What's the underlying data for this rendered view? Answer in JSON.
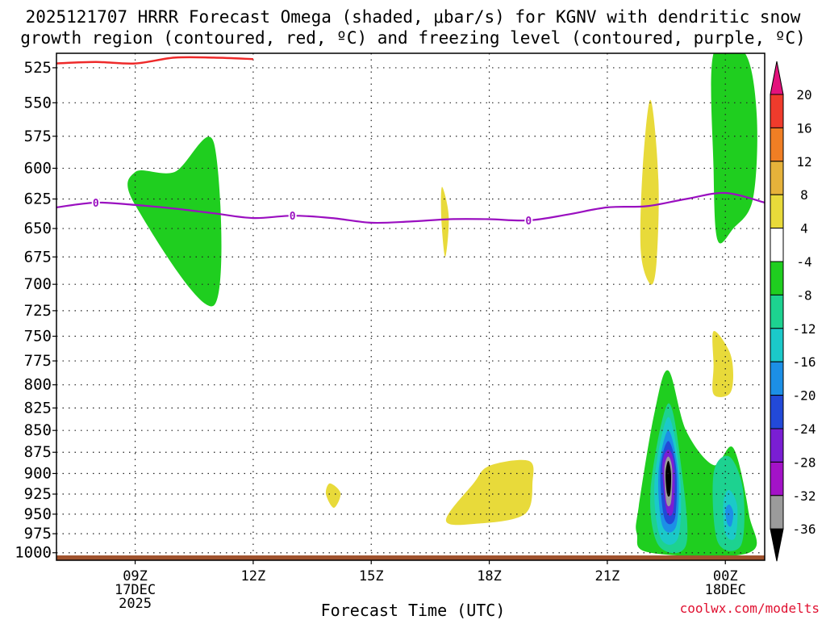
{
  "title_line1": "2025121707 HRRR Forecast Omega (shaded, μbar/s) for KGNV with dendritic snow",
  "title_line2": "growth region (contoured, red, ºC) and freezing level (contoured, purple, ºC)",
  "xlabel": "Forecast Time (UTC)",
  "credit": "coolwx.com/modelts",
  "chart_data": {
    "type": "heatmap",
    "title": "2025121707 HRRR Forecast Omega (shaded, μbar/s) for KGNV with dendritic snow growth region (contoured, red, ºC) and freezing level (contoured, purple, ºC)",
    "xlabel": "Forecast Time (UTC)",
    "ylabel": "",
    "x_range_hours": [
      7,
      25
    ],
    "y_range_mb": [
      515,
      1010
    ],
    "y_scale": "log-pressure (inverted)",
    "y_ticks": [
      525,
      550,
      575,
      600,
      625,
      650,
      675,
      700,
      725,
      750,
      775,
      800,
      825,
      850,
      875,
      900,
      925,
      950,
      975,
      1000
    ],
    "x_ticks": [
      {
        "h": 9,
        "label": "09Z",
        "sub1": "17DEC",
        "sub2": "2025"
      },
      {
        "h": 12,
        "label": "12Z",
        "sub1": "",
        "sub2": ""
      },
      {
        "h": 15,
        "label": "15Z",
        "sub1": "",
        "sub2": ""
      },
      {
        "h": 18,
        "label": "18Z",
        "sub1": "",
        "sub2": ""
      },
      {
        "h": 21,
        "label": "21Z",
        "sub1": "",
        "sub2": ""
      },
      {
        "h": 24,
        "label": "00Z",
        "sub1": "18DEC",
        "sub2": ""
      }
    ],
    "grid": true,
    "colorbar": {
      "labels": [
        "20",
        "16",
        "12",
        "8",
        "4",
        "-4",
        "-8",
        "-12",
        "-16",
        "-20",
        "-24",
        "-28",
        "-32",
        "-36"
      ],
      "colors": [
        "#e3127c",
        "#ef3b2c",
        "#f07e24",
        "#e6b23a",
        "#e8da3a",
        "#ffffff",
        "#1fce1f",
        "#1dd290",
        "#1bc9c9",
        "#1c8fe6",
        "#2249d8",
        "#7a1ed3",
        "#a312c7",
        "#9b9b9b",
        "#000000"
      ]
    },
    "omega_features": [
      {
        "name": "green-lobe-upper-left",
        "value": -6,
        "color": "#1fce1f",
        "points": [
          [
            9,
            603
          ],
          [
            10,
            603
          ],
          [
            11,
            580
          ],
          [
            11,
            720
          ],
          [
            9,
            630
          ]
        ]
      },
      {
        "name": "green-plume-upper-right",
        "value": -6,
        "color": "#1fce1f",
        "points": [
          [
            23.7,
            515
          ],
          [
            24.5,
            515
          ],
          [
            24.8,
            560
          ],
          [
            24.7,
            625
          ],
          [
            24.2,
            650
          ],
          [
            23.8,
            660
          ],
          [
            23.7,
            600
          ]
        ]
      },
      {
        "name": "yellow-streak-1650",
        "value": 5,
        "color": "#e8da3a",
        "points": [
          [
            16.8,
            615
          ],
          [
            16.97,
            640
          ],
          [
            16.88,
            675
          ],
          [
            16.78,
            640
          ]
        ]
      },
      {
        "name": "yellow-plume-2230",
        "value": 5,
        "color": "#e8da3a",
        "points": [
          [
            22.1,
            548
          ],
          [
            22.3,
            610
          ],
          [
            22.25,
            680
          ],
          [
            22.1,
            700
          ],
          [
            21.85,
            670
          ],
          [
            21.9,
            600
          ]
        ]
      },
      {
        "name": "yellow-blob-2400",
        "value": 5,
        "color": "#e8da3a",
        "points": [
          [
            23.7,
            745
          ],
          [
            24.1,
            765
          ],
          [
            24.2,
            790
          ],
          [
            24.1,
            810
          ],
          [
            23.7,
            810
          ],
          [
            23.7,
            780
          ]
        ]
      },
      {
        "name": "yellow-dot-1400",
        "value": 5,
        "color": "#e8da3a",
        "points": [
          [
            13.95,
            912
          ],
          [
            14.22,
            924
          ],
          [
            14.05,
            942
          ],
          [
            13.85,
            925
          ]
        ]
      },
      {
        "name": "yellow-blob-1800",
        "value": 5,
        "color": "#e8da3a",
        "points": [
          [
            16.9,
            958
          ],
          [
            17.6,
            912
          ],
          [
            18.0,
            891
          ],
          [
            19.0,
            885
          ],
          [
            19.1,
            910
          ],
          [
            18.9,
            950
          ],
          [
            17.7,
            962
          ]
        ]
      },
      {
        "name": "omega-core-green",
        "value": -6,
        "color": "#1fce1f",
        "points": [
          [
            21.8,
            940
          ],
          [
            22.2,
            830
          ],
          [
            22.55,
            785
          ],
          [
            23.0,
            850
          ],
          [
            23.7,
            890
          ],
          [
            24.2,
            870
          ],
          [
            24.6,
            950
          ],
          [
            24.6,
            1000
          ],
          [
            22.1,
            1000
          ],
          [
            21.75,
            975
          ]
        ]
      },
      {
        "name": "omega-core-teal",
        "value": -10,
        "color": "#1dd290",
        "points": [
          [
            22.1,
            920
          ],
          [
            22.55,
            820
          ],
          [
            22.9,
            900
          ],
          [
            23.0,
            990
          ],
          [
            22.3,
            990
          ]
        ]
      },
      {
        "name": "omega-core-cyan",
        "value": -14,
        "color": "#1bc9c9",
        "points": [
          [
            22.2,
            910
          ],
          [
            22.55,
            835
          ],
          [
            22.85,
            905
          ],
          [
            22.8,
            980
          ],
          [
            22.35,
            980
          ]
        ]
      },
      {
        "name": "omega-core-blue",
        "value": -18,
        "color": "#1c8fe6",
        "points": [
          [
            22.3,
            900
          ],
          [
            22.55,
            850
          ],
          [
            22.8,
            900
          ],
          [
            22.75,
            965
          ],
          [
            22.4,
            965
          ]
        ]
      },
      {
        "name": "omega-core-darkblue",
        "value": -22,
        "color": "#2249d8",
        "points": [
          [
            22.35,
            895
          ],
          [
            22.55,
            862
          ],
          [
            22.75,
            895
          ],
          [
            22.72,
            955
          ],
          [
            22.45,
            955
          ]
        ]
      },
      {
        "name": "omega-core-purple",
        "value": -26,
        "color": "#7a1ed3",
        "points": [
          [
            22.4,
            890
          ],
          [
            22.55,
            872
          ],
          [
            22.7,
            890
          ],
          [
            22.68,
            945
          ],
          [
            22.5,
            945
          ]
        ]
      },
      {
        "name": "omega-core-gray",
        "value": -34,
        "color": "#9b9b9b",
        "points": [
          [
            22.45,
            895
          ],
          [
            22.55,
            880
          ],
          [
            22.65,
            895
          ],
          [
            22.62,
            935
          ],
          [
            22.5,
            935
          ]
        ]
      },
      {
        "name": "omega-core-black",
        "value": -40,
        "color": "#000000",
        "points": [
          [
            22.48,
            900
          ],
          [
            22.55,
            885
          ],
          [
            22.62,
            900
          ],
          [
            22.6,
            925
          ],
          [
            22.52,
            925
          ]
        ]
      },
      {
        "name": "secondary-cell-cyan",
        "value": -10,
        "color": "#1dd290",
        "points": [
          [
            23.7,
            900
          ],
          [
            24.1,
            880
          ],
          [
            24.45,
            920
          ],
          [
            24.4,
            990
          ],
          [
            23.8,
            985
          ]
        ]
      },
      {
        "name": "secondary-cell-blue",
        "value": -16,
        "color": "#1bc9c9",
        "points": [
          [
            23.95,
            935
          ],
          [
            24.1,
            920
          ],
          [
            24.3,
            940
          ],
          [
            24.25,
            980
          ],
          [
            24.0,
            975
          ]
        ]
      },
      {
        "name": "secondary-cell-core",
        "value": -18,
        "color": "#1c8fe6",
        "points": [
          [
            24.0,
            945
          ],
          [
            24.1,
            938
          ],
          [
            24.2,
            948
          ],
          [
            24.15,
            965
          ],
          [
            24.05,
            962
          ]
        ]
      }
    ],
    "freezing_level": {
      "label": "0",
      "color": "#9a0fc0",
      "points": [
        [
          7,
          632
        ],
        [
          8,
          628
        ],
        [
          9,
          630
        ],
        [
          10,
          633
        ],
        [
          11,
          637
        ],
        [
          12,
          641
        ],
        [
          13,
          639
        ],
        [
          14,
          641
        ],
        [
          15,
          645
        ],
        [
          16,
          644
        ],
        [
          17,
          642
        ],
        [
          18,
          642
        ],
        [
          19,
          643
        ],
        [
          20,
          638
        ],
        [
          21,
          632
        ],
        [
          22,
          631
        ],
        [
          23,
          625
        ],
        [
          24,
          620
        ],
        [
          25,
          628
        ]
      ],
      "label_hours": [
        8,
        13,
        19
      ]
    },
    "dgz_contour": {
      "color": "#ee2a2a",
      "points": [
        [
          7,
          522
        ],
        [
          8,
          521
        ],
        [
          9,
          522
        ],
        [
          10,
          518
        ],
        [
          11,
          518
        ],
        [
          12,
          519
        ]
      ]
    },
    "surface_band": {
      "color": "#a0522d",
      "pressure_mb": 1010
    }
  }
}
